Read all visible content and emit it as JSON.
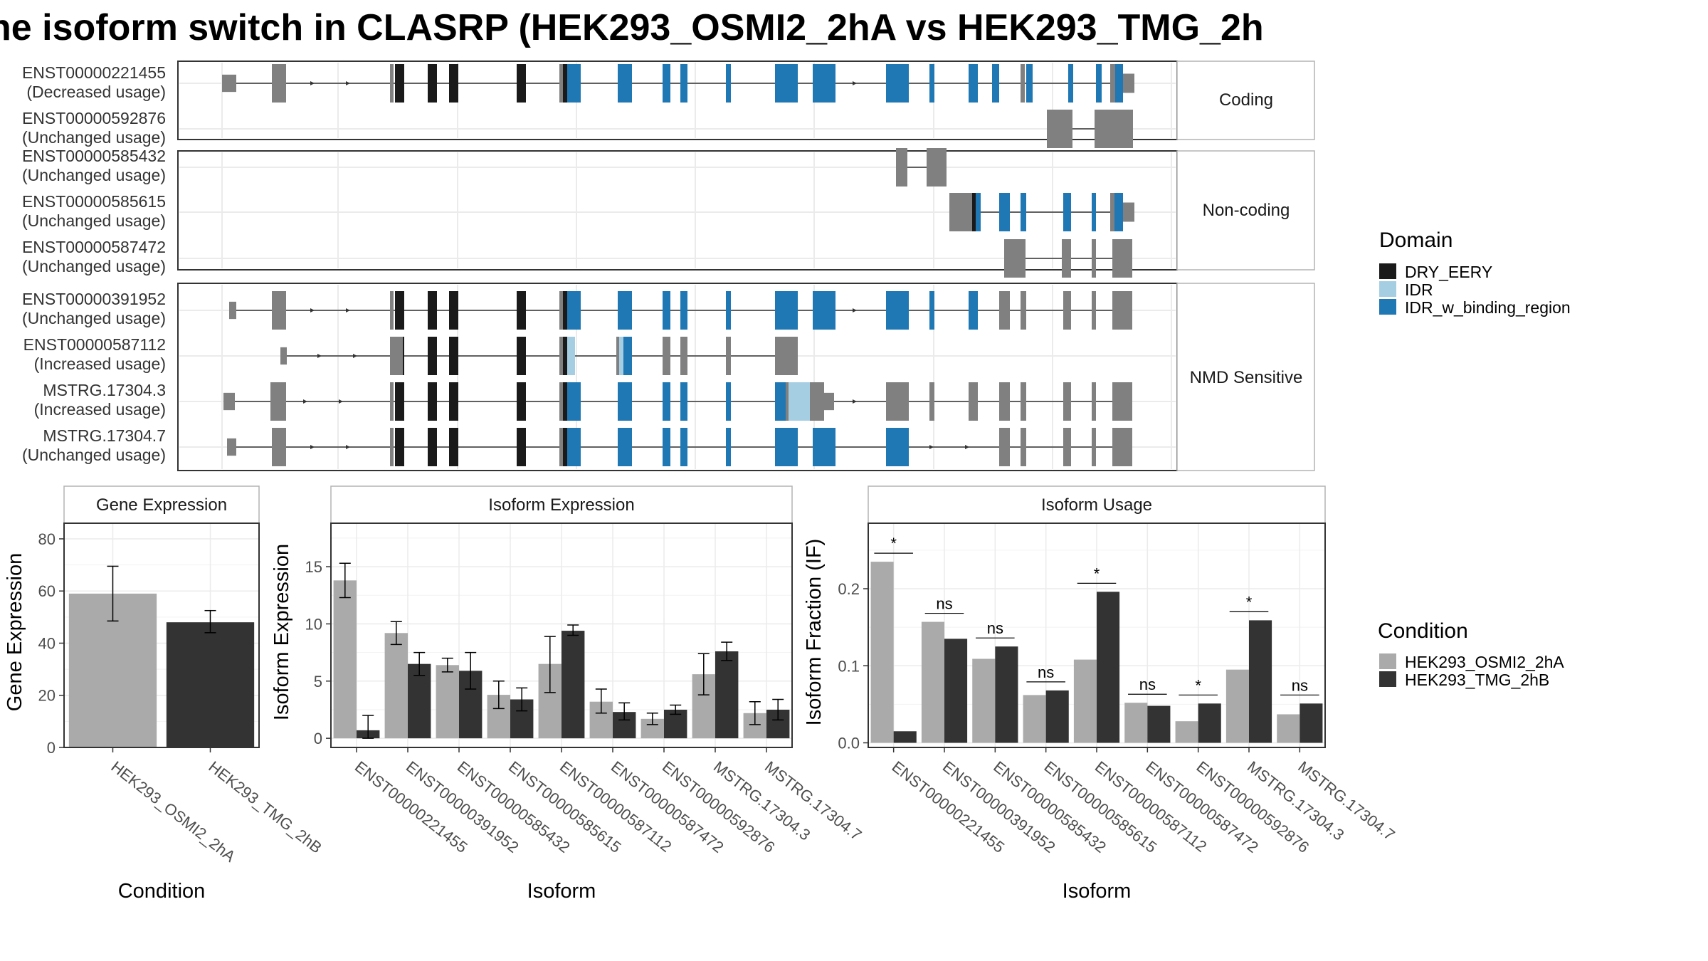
{
  "title": "he isoform switch in CLASRP (HEK293_OSMI2_2hA vs HEK293_TMG_2h",
  "colors": {
    "DRY_EERY": "#1a1a1a",
    "IDR": "#a6cee3",
    "IDR_w_binding_region": "#1f78b4",
    "noncoding_exon": "#808080",
    "HEK293_OSMI2_2hA": "#aaaaaa",
    "HEK293_TMG_2hB": "#333333"
  },
  "transcripts": {
    "groups": [
      "Coding",
      "Non-coding",
      "NMD Sensitive"
    ],
    "labels": [
      {
        "id": "ENST00000221455",
        "usage": "(Decreased usage)"
      },
      {
        "id": "ENST00000592876",
        "usage": "(Unchanged usage)"
      },
      {
        "id": "ENST00000585432",
        "usage": "(Unchanged usage)"
      },
      {
        "id": "ENST00000585615",
        "usage": "(Unchanged usage)"
      },
      {
        "id": "ENST00000587472",
        "usage": "(Unchanged usage)"
      },
      {
        "id": "ENST00000391952",
        "usage": "(Unchanged usage)"
      },
      {
        "id": "ENST00000587112",
        "usage": "(Increased usage)"
      },
      {
        "id": "MSTRG.17304.3",
        "usage": "(Increased usage)"
      },
      {
        "id": "MSTRG.17304.7",
        "usage": "(Unchanged usage)"
      }
    ]
  },
  "legend_domain": {
    "title": "Domain",
    "items": [
      "DRY_EERY",
      "IDR",
      "IDR_w_binding_region"
    ]
  },
  "legend_condition": {
    "title": "Condition",
    "items": [
      "HEK293_OSMI2_2hA",
      "HEK293_TMG_2hB"
    ]
  },
  "chart_data": [
    {
      "type": "bar",
      "title": "Gene Expression",
      "xlabel": "Condition",
      "ylabel": "Gene Expression",
      "categories": [
        "HEK293_OSMI2_2hA",
        "HEK293_TMG_2hB"
      ],
      "values": [
        59,
        48
      ],
      "error_low": [
        48.5,
        44
      ],
      "error_high": [
        69.5,
        52.5
      ],
      "ylim": [
        0,
        86
      ],
      "yticks": [
        0,
        20,
        40,
        60,
        80
      ]
    },
    {
      "type": "bar",
      "title": "Isoform Expression",
      "xlabel": "Isoform",
      "ylabel": "Isoform Expression",
      "categories": [
        "ENST00000221455",
        "ENST00000391952",
        "ENST00000585432",
        "ENST00000585615",
        "ENST00000587112",
        "ENST00000587472",
        "ENST00000592876",
        "MSTRG.17304.3",
        "MSTRG.17304.7"
      ],
      "series": [
        {
          "name": "HEK293_OSMI2_2hA",
          "values": [
            13.8,
            9.2,
            6.4,
            3.8,
            6.5,
            3.2,
            1.7,
            5.6,
            2.2
          ],
          "error_low": [
            12.3,
            8.2,
            5.8,
            2.6,
            4.0,
            2.2,
            1.2,
            3.8,
            1.2
          ],
          "error_high": [
            15.3,
            10.2,
            7.0,
            5.0,
            8.9,
            4.3,
            2.2,
            7.4,
            3.2
          ]
        },
        {
          "name": "HEK293_TMG_2hB",
          "values": [
            0.7,
            6.5,
            5.9,
            3.4,
            9.4,
            2.3,
            2.5,
            7.6,
            2.5
          ],
          "error_low": [
            0,
            5.5,
            4.3,
            2.4,
            9.0,
            1.6,
            2.1,
            6.8,
            1.6
          ],
          "error_high": [
            2.0,
            7.5,
            7.5,
            4.4,
            9.9,
            3.1,
            2.9,
            8.4,
            3.4
          ]
        }
      ],
      "ylim": [
        -0.8,
        18.8
      ],
      "yticks": [
        0,
        5,
        10,
        15
      ]
    },
    {
      "type": "bar",
      "title": "Isoform Usage",
      "xlabel": "Isoform",
      "ylabel": "Isoform Fraction (IF)",
      "categories": [
        "ENST00000221455",
        "ENST00000391952",
        "ENST00000585432",
        "ENST00000585615",
        "ENST00000587112",
        "ENST00000587472",
        "ENST00000592876",
        "MSTRG.17304.3",
        "MSTRG.17304.7"
      ],
      "series": [
        {
          "name": "HEK293_OSMI2_2hA",
          "values": [
            0.235,
            0.157,
            0.109,
            0.062,
            0.108,
            0.052,
            0.028,
            0.095,
            0.037
          ]
        },
        {
          "name": "HEK293_TMG_2hB",
          "values": [
            0.015,
            0.135,
            0.125,
            0.068,
            0.196,
            0.048,
            0.051,
            0.159,
            0.051
          ]
        }
      ],
      "significance": [
        "*",
        "ns",
        "ns",
        "ns",
        "*",
        "ns",
        "*",
        "*",
        "ns"
      ],
      "ylim": [
        -0.006,
        0.285
      ],
      "yticks": [
        0.0,
        0.1,
        0.2
      ],
      "ytick_labels": [
        "0.0",
        "0.1",
        "0.2"
      ]
    }
  ]
}
